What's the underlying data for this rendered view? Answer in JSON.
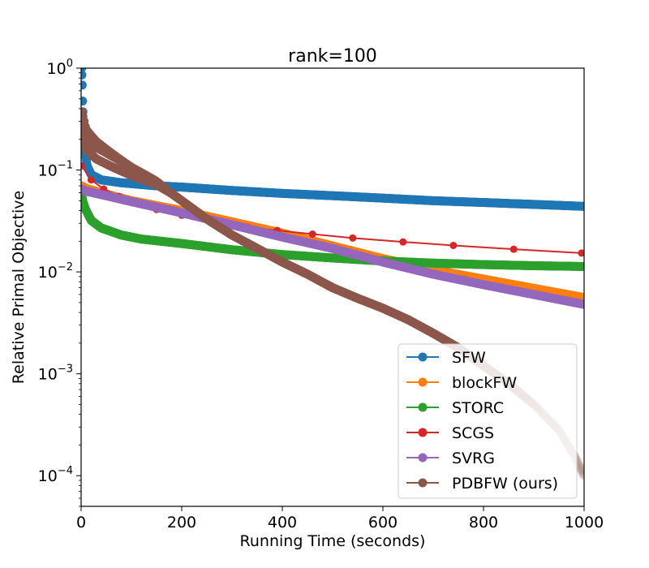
{
  "chart_data": {
    "type": "line",
    "title": "rank=100",
    "xlabel": "Running Time (seconds)",
    "ylabel": "Relative Primal Objective",
    "xlim": [
      0,
      1000
    ],
    "ylim": [
      5e-05,
      1
    ],
    "yscale": "log",
    "grid": false,
    "legend_position": "lower-right",
    "xticks": [
      {
        "value": 0,
        "label": "0"
      },
      {
        "value": 200,
        "label": "200"
      },
      {
        "value": 400,
        "label": "400"
      },
      {
        "value": 600,
        "label": "600"
      },
      {
        "value": 800,
        "label": "800"
      },
      {
        "value": 1000,
        "label": "1000"
      }
    ],
    "yticks": [
      {
        "value": 1,
        "base": "10",
        "exp": "0"
      },
      {
        "value": 0.1,
        "base": "10",
        "exp": "−1"
      },
      {
        "value": 0.01,
        "base": "10",
        "exp": "−2"
      },
      {
        "value": 0.001,
        "base": "10",
        "exp": "−3"
      },
      {
        "value": 0.0001,
        "base": "10",
        "exp": "−4"
      }
    ],
    "series": [
      {
        "name": "SFW",
        "color": "#1f77b4",
        "style": "dense",
        "x": [
          1,
          2,
          3,
          5,
          8,
          12,
          20,
          40,
          80,
          150,
          200,
          300,
          400,
          500,
          600,
          700,
          800,
          900,
          1000
        ],
        "y": [
          1.0,
          0.75,
          0.45,
          0.25,
          0.15,
          0.11,
          0.09,
          0.08,
          0.075,
          0.07,
          0.068,
          0.063,
          0.059,
          0.056,
          0.053,
          0.05,
          0.048,
          0.046,
          0.044
        ]
      },
      {
        "name": "blockFW",
        "color": "#ff7f0e",
        "style": "dense",
        "x": [
          1,
          10,
          50,
          100,
          200,
          300,
          400,
          500,
          600,
          700,
          800,
          900,
          1000
        ],
        "y": [
          0.07,
          0.066,
          0.058,
          0.05,
          0.04,
          0.031,
          0.024,
          0.018,
          0.0135,
          0.0105,
          0.0085,
          0.0069,
          0.0056
        ]
      },
      {
        "name": "STORC",
        "color": "#2ca02c",
        "style": "dense",
        "x": [
          1,
          3,
          8,
          20,
          40,
          80,
          120,
          200,
          300,
          400,
          500,
          600,
          700,
          800,
          900,
          1000
        ],
        "y": [
          0.06,
          0.05,
          0.042,
          0.032,
          0.027,
          0.023,
          0.021,
          0.019,
          0.0165,
          0.0148,
          0.0137,
          0.0128,
          0.0122,
          0.0118,
          0.0115,
          0.0113
        ]
      },
      {
        "name": "SCGS",
        "color": "#d62728",
        "style": "sparse",
        "x": [
          1,
          20,
          45,
          75,
          110,
          150,
          200,
          265,
          330,
          390,
          460,
          540,
          640,
          740,
          860,
          995
        ],
        "y": [
          0.11,
          0.08,
          0.065,
          0.055,
          0.047,
          0.041,
          0.036,
          0.031,
          0.0275,
          0.0255,
          0.0235,
          0.0215,
          0.0197,
          0.0182,
          0.0167,
          0.0153
        ]
      },
      {
        "name": "SVRG",
        "color": "#9467bd",
        "style": "dense",
        "x": [
          1,
          10,
          50,
          100,
          200,
          300,
          400,
          500,
          600,
          700,
          800,
          900,
          1000
        ],
        "y": [
          0.065,
          0.062,
          0.056,
          0.049,
          0.038,
          0.029,
          0.022,
          0.017,
          0.0125,
          0.0095,
          0.0075,
          0.006,
          0.0048
        ]
      },
      {
        "name": "PDBFW (ours)",
        "color": "#8c564b",
        "style": "dense-noisy",
        "x": [
          1,
          10,
          30,
          60,
          100,
          150,
          200,
          250,
          300,
          350,
          400,
          450,
          500,
          550,
          600,
          650,
          700,
          750,
          800,
          850,
          900,
          950,
          980,
          1000
        ],
        "y": [
          0.3,
          0.2,
          0.16,
          0.13,
          0.1,
          0.075,
          0.05,
          0.033,
          0.023,
          0.017,
          0.0125,
          0.0095,
          0.007,
          0.0055,
          0.0044,
          0.0034,
          0.0025,
          0.0018,
          0.0012,
          0.0008,
          0.0005,
          0.00028,
          0.00016,
          0.0001
        ]
      }
    ]
  }
}
